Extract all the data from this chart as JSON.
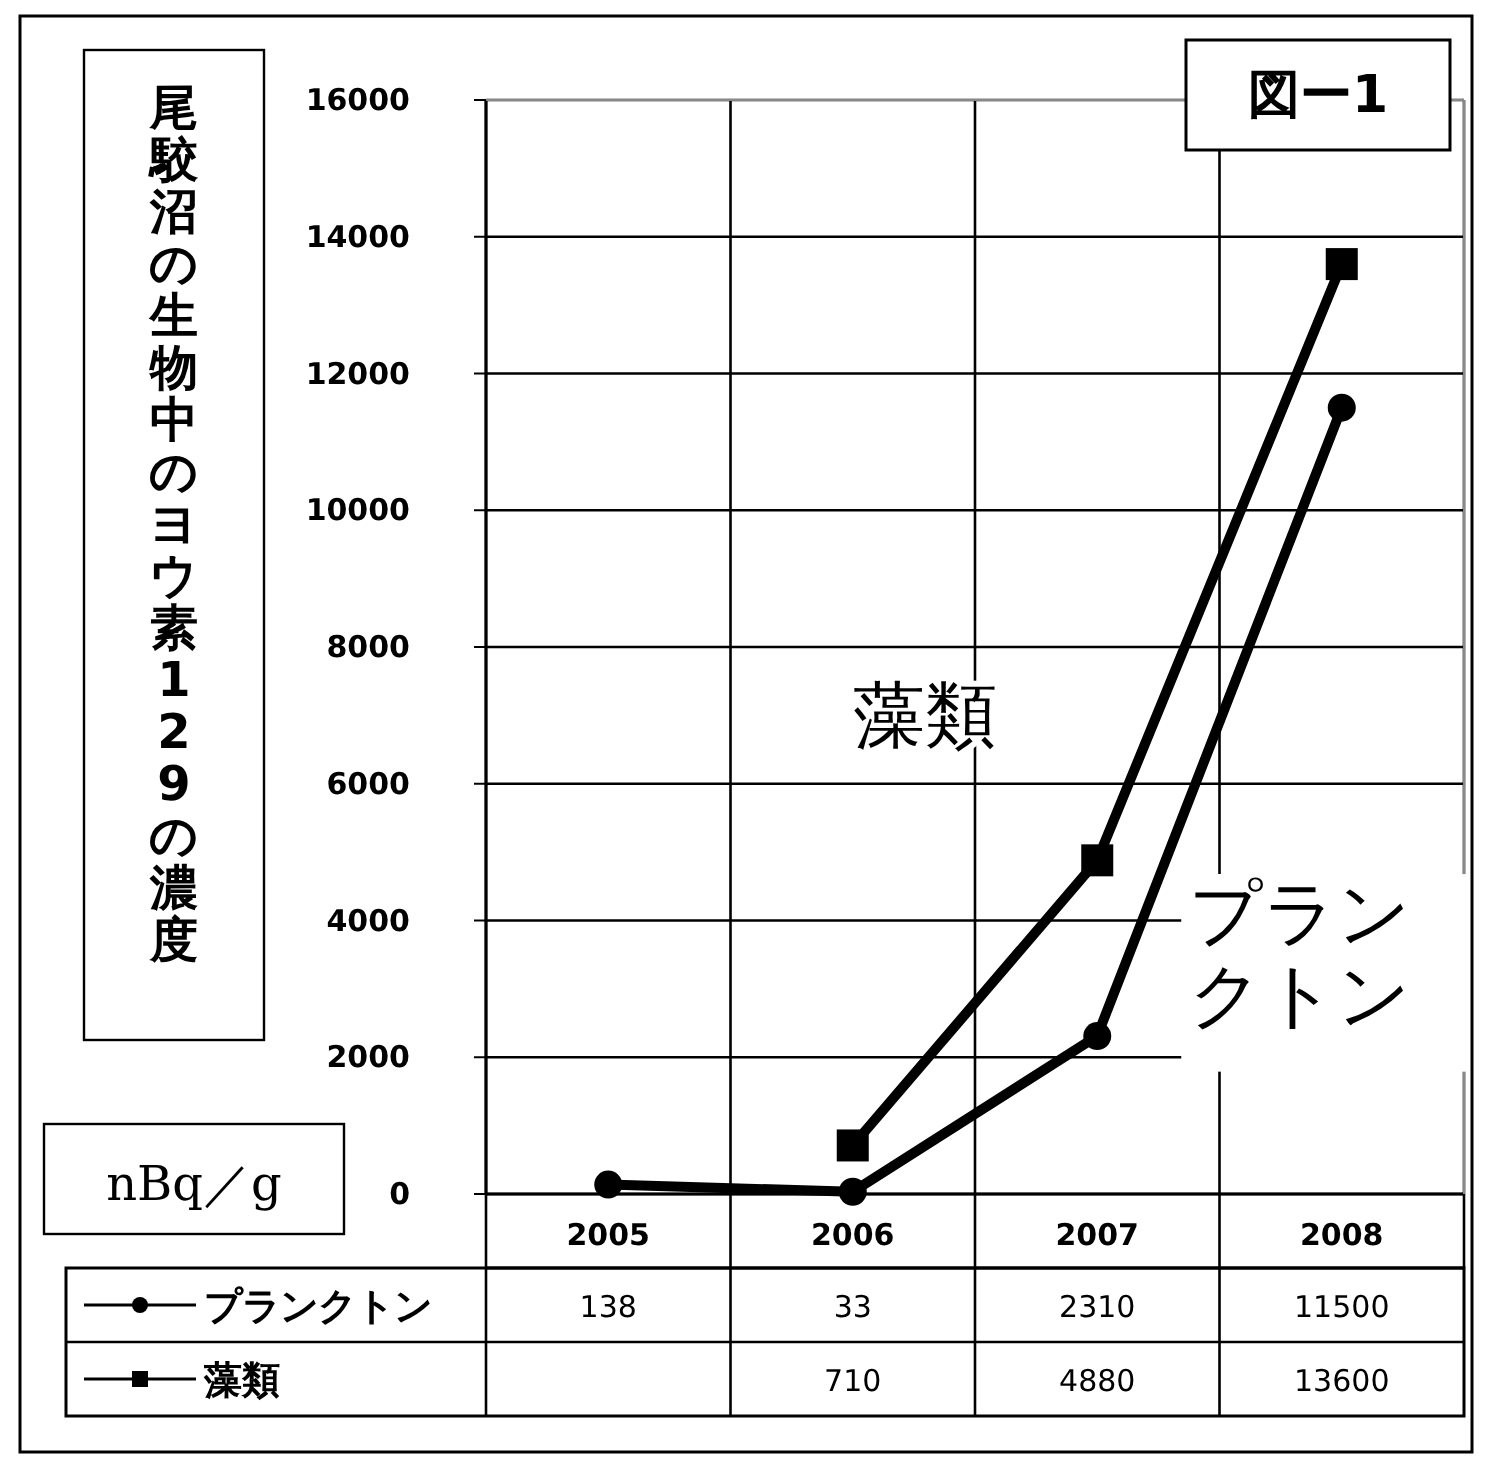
{
  "chart_data": {
    "type": "line",
    "title": "図ー1",
    "ylabel": "尾駮沼の生物中のヨウ素129の濃度",
    "annotations": [
      "nBq／g"
    ],
    "categories": [
      "2005",
      "2006",
      "2007",
      "2008"
    ],
    "series": [
      {
        "name": "プランクトン",
        "color": "#000000",
        "marker": "circle",
        "values": [
          138,
          33,
          2310,
          11500
        ]
      },
      {
        "name": "藻類",
        "color": "#000000",
        "marker": "square",
        "values": [
          null,
          710,
          4880,
          13600
        ]
      }
    ],
    "ylim": [
      0,
      16000
    ],
    "yticks": [
      0,
      2000,
      4000,
      6000,
      8000,
      10000,
      12000,
      14000,
      16000
    ],
    "grid": true,
    "data_labels": true,
    "legend": "bottom"
  }
}
